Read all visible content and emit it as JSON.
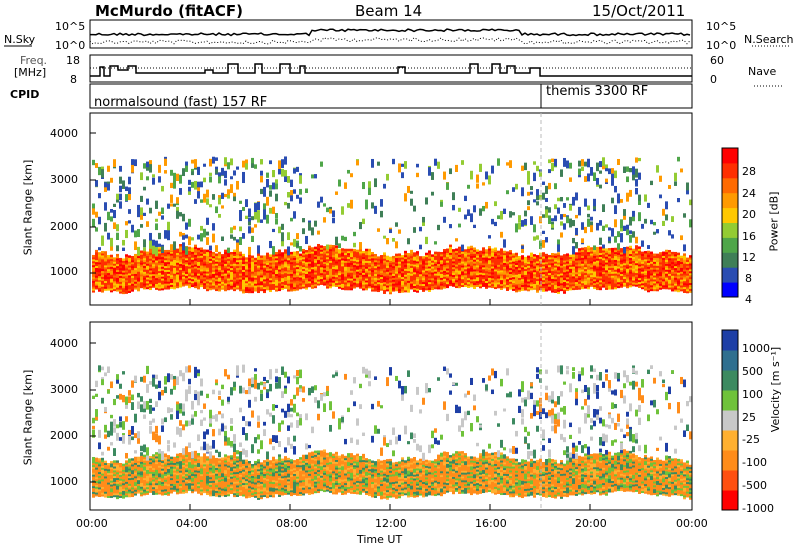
{
  "header": {
    "station": "McMurdo (fitACF)",
    "beam": "Beam 14",
    "date": "15/Oct/2011"
  },
  "sky_panel": {
    "left_label": "N.Sky",
    "right_label": "N.Search",
    "left_ticks": [
      "10^5",
      "10^0"
    ],
    "right_ticks": [
      "10^5",
      "10^0"
    ]
  },
  "freq_panel": {
    "left_label_1": "Freq.",
    "left_label_2": "[MHz]",
    "right_label": "Nave",
    "left_ticks": [
      "18",
      "8"
    ],
    "right_ticks": [
      "60",
      "0"
    ]
  },
  "cpid_panel": {
    "label": "CPID",
    "mode_1": "normalsound (fast) 157 RF",
    "mode_2": "themis 3300 RF"
  },
  "chart_data": [
    {
      "type": "heatmap",
      "name": "power",
      "ylabel": "Slant Range [km]",
      "yticks": [
        "1000",
        "2000",
        "3000",
        "4000"
      ],
      "ylim": [
        180,
        4600
      ],
      "xticks": [
        "00:00",
        "04:00",
        "08:00",
        "12:00",
        "16:00",
        "20:00",
        "00:00"
      ],
      "xlim": [
        0,
        24
      ],
      "colorbar": {
        "label": "Power [dB]",
        "ticks": [
          "28",
          "24",
          "20",
          "16",
          "12",
          "8",
          "4"
        ],
        "colors": [
          "#0000ff",
          "#2a4db2",
          "#3f7f57",
          "#4fa649",
          "#93cc33",
          "#ffc800",
          "#ff9a00",
          "#ff6a00",
          "#ff2f00",
          "#ff0000"
        ]
      },
      "main_band": {
        "range_km": [
          400,
          1400
        ],
        "dominant": "red-orange"
      }
    },
    {
      "type": "heatmap",
      "name": "velocity",
      "ylabel": "Slant Range [km]",
      "yticks": [
        "1000",
        "2000",
        "3000",
        "4000"
      ],
      "ylim": [
        180,
        4600
      ],
      "xticks": [
        "00:00",
        "04:00",
        "08:00",
        "12:00",
        "16:00",
        "20:00",
        "00:00"
      ],
      "xlim": [
        0,
        24
      ],
      "xlabel": "Time UT",
      "colorbar": {
        "label": "Velocity [m s⁻¹]",
        "ticks": [
          "1000",
          "500",
          "100",
          "25",
          "-25",
          "-100",
          "-500",
          "-1000"
        ],
        "colors": [
          "#1e3fa6",
          "#2f6f8f",
          "#3c8a60",
          "#6fc23a",
          "#c8c8c8",
          "#ffb030",
          "#ff8c1a",
          "#ff5010",
          "#ff0000"
        ]
      },
      "main_band": {
        "range_km": [
          500,
          1500
        ],
        "dominant": "orange"
      }
    }
  ]
}
